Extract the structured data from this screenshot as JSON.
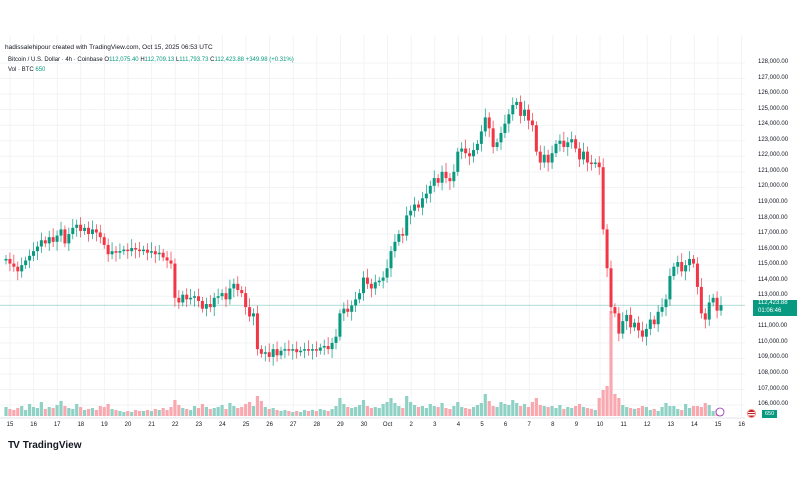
{
  "header": {
    "credit": "hadissalehipour created with TradingView.com, Oct 15, 2025 06:53 UTC",
    "symbol": "Bitcoin / U.S. Dollar · 4h · Coinbase",
    "open_label": "O",
    "open": "112,075.40",
    "high_label": "H",
    "high": "112,709.13",
    "low_label": "L",
    "low": "111,793.73",
    "close_label": "C",
    "close": "112,423.88",
    "change": "+349.98 (+0.31%)",
    "vol_label": "Vol · BTC",
    "vol": "650"
  },
  "price_axis": {
    "labels": [
      "128,000.00",
      "127,000.00",
      "126,000.00",
      "125,000.00",
      "124,000.00",
      "123,000.00",
      "122,000.00",
      "121,000.00",
      "120,000.00",
      "119,000.00",
      "118,000.00",
      "117,000.00",
      "116,000.00",
      "115,000.00",
      "114,000.00",
      "113,000.00",
      "111,000.00",
      "110,000.00",
      "109,000.00",
      "108,000.00",
      "107,000.00",
      "106,000.00"
    ],
    "current_price": "112,423.88",
    "countdown": "01:06:46",
    "volume_badge": "650"
  },
  "time_axis": [
    "15",
    "16",
    "17",
    "18",
    "19",
    "20",
    "21",
    "22",
    "23",
    "24",
    "25",
    "26",
    "27",
    "28",
    "29",
    "30",
    "Oct",
    "2",
    "3",
    "4",
    "5",
    "6",
    "7",
    "8",
    "9",
    "10",
    "11",
    "12",
    "13",
    "14",
    "15",
    "16"
  ],
  "brand": "TradingView",
  "colors": {
    "up": "#089981",
    "down": "#f23645",
    "vol_up": "#8fd1c5",
    "vol_down": "#f9a8b0",
    "grid": "#f2f3f5"
  },
  "chart_data": {
    "type": "candlestick",
    "title": "Bitcoin / U.S. Dollar · 4h · Coinbase",
    "ylim": [
      105500,
      128500
    ],
    "first_open": 115300,
    "closes": [
      115.4,
      115.1,
      114.9,
      114.6,
      115.0,
      115.3,
      115.6,
      115.9,
      116.2,
      116.6,
      116.4,
      116.8,
      116.5,
      116.9,
      117.3,
      116.4,
      117.0,
      117.4,
      117.6,
      117.2,
      117.4,
      117.0,
      117.3,
      117.1,
      116.8,
      116.3,
      115.7,
      115.9,
      115.8,
      115.9,
      116.0,
      115.9,
      116.1,
      116.0,
      115.9,
      116.0,
      115.8,
      115.9,
      115.7,
      115.8,
      115.5,
      115.3,
      115.1,
      112.9,
      112.6,
      113.1,
      112.8,
      112.9,
      113.0,
      112.7,
      112.2,
      112.5,
      112.3,
      112.9,
      113.0,
      113.2,
      112.8,
      113.5,
      113.8,
      113.4,
      113.2,
      112.3,
      111.7,
      111.9,
      109.6,
      109.3,
      109.4,
      109.1,
      109.6,
      109.2,
      109.5,
      109.6,
      109.5,
      109.6,
      109.4,
      109.5,
      109.6,
      109.5,
      109.6,
      109.5,
      109.7,
      109.8,
      109.6,
      110.0,
      110.4,
      111.9,
      112.2,
      112.0,
      112.4,
      112.8,
      113.2,
      114.2,
      113.8,
      113.5,
      113.9,
      114.0,
      114.2,
      114.8,
      115.9,
      116.5,
      117.0,
      116.9,
      118.2,
      118.5,
      118.9,
      118.7,
      119.3,
      119.6,
      120.1,
      120.6,
      120.3,
      121.0,
      120.6,
      120.4,
      121.0,
      122.3,
      122.5,
      122.2,
      122.0,
      122.4,
      122.8,
      123.6,
      124.5,
      123.8,
      122.6,
      122.9,
      123.5,
      124.1,
      124.7,
      125.3,
      125.5,
      124.6,
      125.0,
      124.3,
      124.0,
      122.3,
      121.6,
      122.1,
      121.6,
      122.2,
      122.8,
      123.0,
      122.6,
      122.9,
      123.1,
      122.5,
      121.8,
      122.3,
      121.6,
      121.5,
      121.6,
      121.3,
      117.3,
      114.8,
      112.3,
      111.9,
      110.6,
      111.4,
      111.8,
      111.0,
      111.3,
      110.8,
      110.4,
      110.9,
      111.5,
      111.2,
      112.0,
      112.3,
      112.8,
      114.3,
      114.9,
      115.2,
      114.6,
      115.0,
      115.4,
      115.1,
      113.6,
      111.9,
      111.5,
      112.6,
      112.9,
      112.075,
      112.424
    ],
    "volumes": [
      9,
      7,
      6,
      8,
      10,
      6,
      12,
      9,
      8,
      14,
      7,
      9,
      8,
      11,
      15,
      10,
      8,
      7,
      12,
      9,
      6,
      7,
      8,
      6,
      10,
      9,
      12,
      7,
      6,
      5,
      4,
      5,
      4,
      6,
      5,
      5,
      6,
      5,
      7,
      6,
      8,
      6,
      9,
      16,
      11,
      8,
      7,
      6,
      10,
      8,
      12,
      9,
      7,
      8,
      9,
      11,
      7,
      13,
      10,
      8,
      9,
      12,
      14,
      10,
      20,
      15,
      9,
      7,
      8,
      6,
      5,
      6,
      5,
      4,
      5,
      4,
      6,
      5,
      6,
      5,
      7,
      6,
      5,
      7,
      10,
      18,
      12,
      9,
      8,
      9,
      11,
      16,
      10,
      8,
      9,
      8,
      12,
      14,
      18,
      13,
      10,
      8,
      20,
      14,
      11,
      9,
      10,
      8,
      12,
      10,
      9,
      13,
      8,
      7,
      10,
      14,
      9,
      8,
      7,
      9,
      11,
      13,
      22,
      15,
      10,
      9,
      14,
      12,
      11,
      16,
      13,
      10,
      12,
      9,
      14,
      18,
      11,
      10,
      9,
      10,
      8,
      11,
      7,
      9,
      8,
      10,
      12,
      9,
      8,
      7,
      6,
      18,
      26,
      30,
      105,
      22,
      18,
      11,
      9,
      8,
      7,
      8,
      10,
      9,
      6,
      7,
      5,
      9,
      13,
      10,
      10,
      7,
      6,
      12,
      8,
      10,
      10,
      9,
      13,
      11,
      5,
      6,
      7
    ]
  }
}
